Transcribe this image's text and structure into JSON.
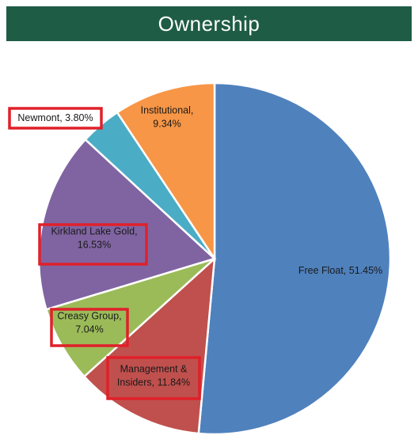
{
  "title": "Ownership",
  "chart_data": {
    "type": "pie",
    "title": "Ownership",
    "slices": [
      {
        "label": "Free Float",
        "value": 51.45,
        "display": "51.45%",
        "color": "#4f81bd",
        "highlight": false,
        "lines": [
          "Free Float, 51.45%"
        ]
      },
      {
        "label": "Management & Insiders",
        "value": 11.84,
        "display": "11.84%",
        "color": "#c0504d",
        "highlight": true,
        "lines": [
          "Management &",
          "Insiders, 11.84%"
        ]
      },
      {
        "label": "Creasy Group",
        "value": 7.04,
        "display": "7.04%",
        "color": "#9bbb59",
        "highlight": true,
        "lines": [
          "Creasy Group,",
          "7.04%"
        ]
      },
      {
        "label": "Kirkland Lake Gold",
        "value": 16.53,
        "display": "16.53%",
        "color": "#8064a2",
        "highlight": true,
        "lines": [
          "Kirkland Lake Gold,",
          "16.53%"
        ]
      },
      {
        "label": "Newmont",
        "value": 3.8,
        "display": "3.80%",
        "color": "#4bacc6",
        "highlight": true,
        "lines": [
          "Newmont, 3.80%"
        ]
      },
      {
        "label": "Institutional",
        "value": 9.34,
        "display": "9.34%",
        "color": "#f79646",
        "highlight": false,
        "lines": [
          "Institutional,",
          "9.34%"
        ]
      }
    ]
  }
}
